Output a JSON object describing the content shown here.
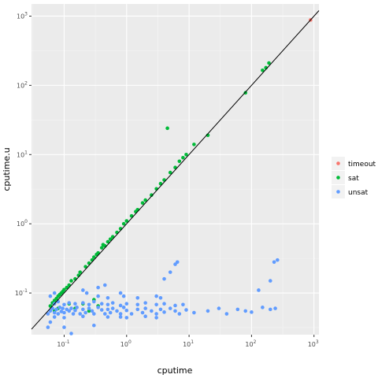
{
  "chart_data": {
    "type": "scatter",
    "title": "",
    "xlabel": "cputime",
    "ylabel": "cputime.u",
    "x_scale": "log10",
    "y_scale": "log10",
    "xlim": [
      0.03,
      1200
    ],
    "ylim": [
      0.025,
      1500
    ],
    "x_ticks": [
      {
        "value": 0.1,
        "base": "10",
        "exp": "-1"
      },
      {
        "value": 1,
        "base": "10",
        "exp": "0"
      },
      {
        "value": 10,
        "base": "10",
        "exp": "1"
      },
      {
        "value": 100,
        "base": "10",
        "exp": "2"
      },
      {
        "value": 1000,
        "base": "10",
        "exp": "3"
      }
    ],
    "y_ticks": [
      {
        "value": 0.1,
        "base": "10",
        "exp": "-1"
      },
      {
        "value": 1,
        "base": "10",
        "exp": "0"
      },
      {
        "value": 10,
        "base": "10",
        "exp": "1"
      },
      {
        "value": 100,
        "base": "10",
        "exp": "2"
      },
      {
        "value": 1000,
        "base": "10",
        "exp": "3"
      }
    ],
    "grid": true,
    "background": "#ebebeb",
    "reference_line": "y = x",
    "legend": {
      "placement": "right",
      "entries": [
        "timeout",
        "sat",
        "unsat"
      ]
    },
    "series": [
      {
        "name": "timeout",
        "color": "#f8766d",
        "points": [
          [
            880,
            880
          ]
        ]
      },
      {
        "name": "sat",
        "color": "#00ba38",
        "points": [
          [
            0.06,
            0.065
          ],
          [
            0.065,
            0.072
          ],
          [
            0.07,
            0.078
          ],
          [
            0.075,
            0.083
          ],
          [
            0.08,
            0.09
          ],
          [
            0.085,
            0.095
          ],
          [
            0.09,
            0.1
          ],
          [
            0.095,
            0.105
          ],
          [
            0.1,
            0.112
          ],
          [
            0.11,
            0.12
          ],
          [
            0.12,
            0.13
          ],
          [
            0.13,
            0.15
          ],
          [
            0.15,
            0.16
          ],
          [
            0.17,
            0.18
          ],
          [
            0.18,
            0.2
          ],
          [
            0.22,
            0.24
          ],
          [
            0.25,
            0.27
          ],
          [
            0.28,
            0.3
          ],
          [
            0.3,
            0.33
          ],
          [
            0.33,
            0.36
          ],
          [
            0.35,
            0.38
          ],
          [
            0.4,
            0.45
          ],
          [
            0.42,
            0.5
          ],
          [
            0.45,
            0.48
          ],
          [
            0.5,
            0.55
          ],
          [
            0.55,
            0.6
          ],
          [
            0.6,
            0.65
          ],
          [
            0.7,
            0.75
          ],
          [
            0.8,
            0.85
          ],
          [
            0.9,
            1.0
          ],
          [
            1.0,
            1.1
          ],
          [
            1.2,
            1.3
          ],
          [
            1.4,
            1.5
          ],
          [
            1.5,
            1.6
          ],
          [
            1.8,
            2.0
          ],
          [
            2.0,
            2.2
          ],
          [
            2.5,
            2.6
          ],
          [
            3.0,
            3.2
          ],
          [
            3.5,
            3.8
          ],
          [
            4.0,
            4.3
          ],
          [
            5.0,
            5.5
          ],
          [
            6.0,
            6.5
          ],
          [
            7.0,
            8.0
          ],
          [
            8.0,
            9.0
          ],
          [
            9.0,
            10.0
          ],
          [
            12,
            14
          ],
          [
            20,
            19
          ],
          [
            80,
            78
          ],
          [
            150,
            165
          ],
          [
            170,
            180
          ],
          [
            190,
            210
          ],
          [
            0.07,
            0.055
          ],
          [
            0.08,
            0.06
          ],
          [
            0.12,
            0.07
          ],
          [
            0.15,
            0.06
          ],
          [
            0.2,
            0.07
          ],
          [
            0.3,
            0.08
          ],
          [
            0.35,
            0.065
          ],
          [
            0.25,
            0.055
          ],
          [
            4.5,
            24
          ]
        ]
      },
      {
        "name": "unsat",
        "color": "#619cff",
        "points": [
          [
            0.055,
            0.05
          ],
          [
            0.06,
            0.055
          ],
          [
            0.065,
            0.06
          ],
          [
            0.07,
            0.052
          ],
          [
            0.075,
            0.058
          ],
          [
            0.08,
            0.05
          ],
          [
            0.085,
            0.062
          ],
          [
            0.09,
            0.054
          ],
          [
            0.095,
            0.06
          ],
          [
            0.1,
            0.052
          ],
          [
            0.11,
            0.058
          ],
          [
            0.12,
            0.055
          ],
          [
            0.13,
            0.06
          ],
          [
            0.14,
            0.05
          ],
          [
            0.15,
            0.056
          ],
          [
            0.16,
            0.062
          ],
          [
            0.18,
            0.05
          ],
          [
            0.2,
            0.058
          ],
          [
            0.22,
            0.052
          ],
          [
            0.25,
            0.06
          ],
          [
            0.28,
            0.055
          ],
          [
            0.3,
            0.05
          ],
          [
            0.35,
            0.062
          ],
          [
            0.4,
            0.057
          ],
          [
            0.45,
            0.05
          ],
          [
            0.5,
            0.058
          ],
          [
            0.55,
            0.052
          ],
          [
            0.6,
            0.06
          ],
          [
            0.7,
            0.055
          ],
          [
            0.8,
            0.05
          ],
          [
            0.9,
            0.062
          ],
          [
            1.0,
            0.056
          ],
          [
            1.2,
            0.05
          ],
          [
            1.5,
            0.058
          ],
          [
            1.8,
            0.052
          ],
          [
            2.0,
            0.06
          ],
          [
            2.5,
            0.055
          ],
          [
            3.0,
            0.05
          ],
          [
            3.5,
            0.058
          ],
          [
            4.0,
            0.053
          ],
          [
            5.0,
            0.06
          ],
          [
            6.0,
            0.055
          ],
          [
            7.0,
            0.05
          ],
          [
            9.0,
            0.057
          ],
          [
            12,
            0.052
          ],
          [
            20,
            0.055
          ],
          [
            30,
            0.06
          ],
          [
            40,
            0.05
          ],
          [
            60,
            0.058
          ],
          [
            80,
            0.055
          ],
          [
            100,
            0.053
          ],
          [
            150,
            0.062
          ],
          [
            200,
            0.058
          ],
          [
            240,
            0.06
          ],
          [
            0.07,
            0.07
          ],
          [
            0.08,
            0.075
          ],
          [
            0.1,
            0.068
          ],
          [
            0.12,
            0.072
          ],
          [
            0.15,
            0.07
          ],
          [
            0.2,
            0.072
          ],
          [
            0.25,
            0.068
          ],
          [
            0.3,
            0.075
          ],
          [
            0.4,
            0.07
          ],
          [
            0.5,
            0.068
          ],
          [
            0.6,
            0.072
          ],
          [
            0.8,
            0.066
          ],
          [
            1.0,
            0.07
          ],
          [
            1.5,
            0.068
          ],
          [
            2.0,
            0.072
          ],
          [
            3.0,
            0.068
          ],
          [
            4.0,
            0.07
          ],
          [
            6.0,
            0.066
          ],
          [
            8.0,
            0.068
          ],
          [
            0.07,
            0.045
          ],
          [
            0.1,
            0.044
          ],
          [
            0.2,
            0.046
          ],
          [
            0.5,
            0.045
          ],
          [
            1.0,
            0.044
          ],
          [
            2.0,
            0.046
          ],
          [
            3.0,
            0.044
          ],
          [
            0.06,
            0.038
          ],
          [
            0.055,
            0.032
          ],
          [
            0.1,
            0.032
          ],
          [
            0.13,
            0.026
          ],
          [
            0.3,
            0.034
          ],
          [
            0.8,
            0.045
          ],
          [
            0.35,
            0.09
          ],
          [
            0.5,
            0.085
          ],
          [
            0.8,
            0.1
          ],
          [
            0.2,
            0.11
          ],
          [
            0.45,
            0.13
          ],
          [
            0.35,
            0.12
          ],
          [
            0.23,
            0.1
          ],
          [
            0.9,
            0.09
          ],
          [
            1.5,
            0.085
          ],
          [
            3.0,
            0.09
          ],
          [
            3.5,
            0.085
          ],
          [
            4.0,
            0.16
          ],
          [
            5.0,
            0.2
          ],
          [
            6.0,
            0.26
          ],
          [
            6.5,
            0.28
          ],
          [
            200,
            0.15
          ],
          [
            230,
            0.28
          ],
          [
            260,
            0.3
          ],
          [
            130,
            0.11
          ],
          [
            0.06,
            0.09
          ],
          [
            0.07,
            0.1
          ]
        ]
      }
    ]
  }
}
